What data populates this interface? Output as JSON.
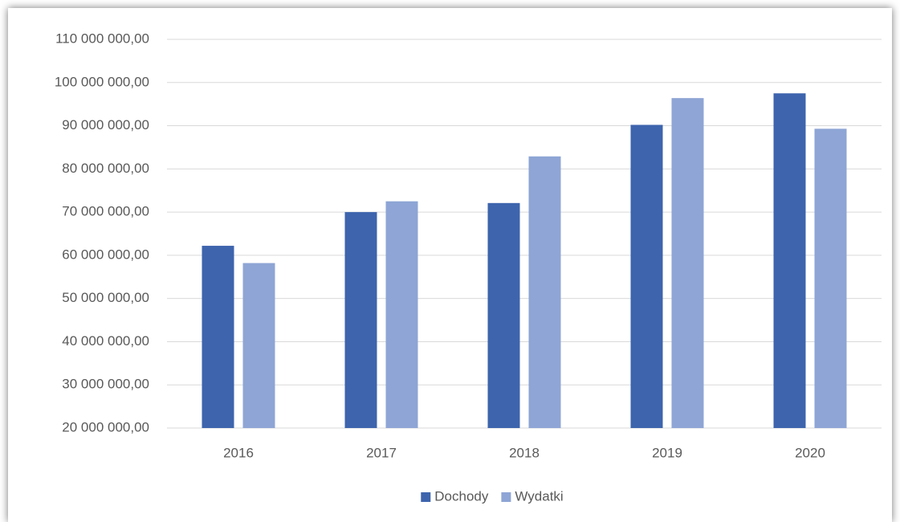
{
  "chart_data": {
    "type": "bar",
    "categories": [
      "2016",
      "2017",
      "2018",
      "2019",
      "2020"
    ],
    "series": [
      {
        "name": "Dochody",
        "color": "#3d64ad",
        "values": [
          62200000,
          70000000,
          72100000,
          90200000,
          97500000
        ]
      },
      {
        "name": "Wydatki",
        "color": "#8ea5d5",
        "values": [
          58200000,
          72500000,
          82900000,
          96400000,
          89300000
        ]
      }
    ],
    "ylim": [
      20000000,
      110000000
    ],
    "yticks": [
      {
        "value": 20000000,
        "label": "20 000 000,00"
      },
      {
        "value": 30000000,
        "label": "30 000 000,00"
      },
      {
        "value": 40000000,
        "label": "40 000 000,00"
      },
      {
        "value": 50000000,
        "label": "50 000 000,00"
      },
      {
        "value": 60000000,
        "label": "60 000 000,00"
      },
      {
        "value": 70000000,
        "label": "70 000 000,00"
      },
      {
        "value": 80000000,
        "label": "80 000 000,00"
      },
      {
        "value": 90000000,
        "label": "90 000 000,00"
      },
      {
        "value": 100000000,
        "label": "100 000 000,00"
      },
      {
        "value": 110000000,
        "label": "110 000 000,00"
      }
    ],
    "grid": true,
    "legend": "bottom"
  }
}
